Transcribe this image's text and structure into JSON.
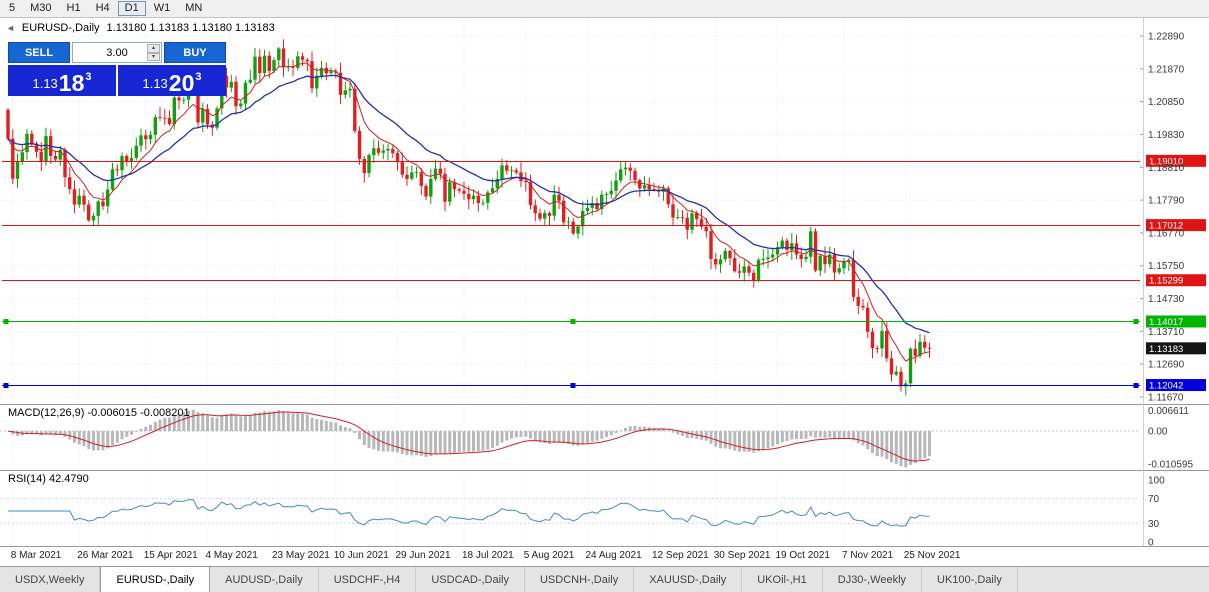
{
  "toolbar": {
    "timeframes": [
      "5",
      "M30",
      "H1",
      "H4",
      "D1",
      "W1",
      "MN"
    ],
    "active_timeframe": "D1"
  },
  "chart_header": {
    "symbol": "EURUSD-,Daily",
    "ohlc_text": "1.13180 1.13183 1.13180 1.13183"
  },
  "icons": {
    "collapse_left": "◄",
    "spin_up": "▴",
    "spin_down": "▾"
  },
  "trade_panel": {
    "sell_label": "SELL",
    "buy_label": "BUY",
    "volume": "3.00",
    "sell_price": {
      "prefix": "1.13",
      "big": "18",
      "sup": "3"
    },
    "buy_price": {
      "prefix": "1.13",
      "big": "20",
      "sup": "3"
    }
  },
  "chart_data": {
    "type": "candlestick",
    "symbol": "EURUSD-",
    "timeframe": "Daily",
    "current_bar": {
      "open": "1.13180",
      "high": "1.13183",
      "low": "1.13180",
      "close": "1.13183"
    },
    "y_axis_ticks": [
      "1.22890",
      "1.21870",
      "1.20850",
      "1.19830",
      "1.18810",
      "1.17790",
      "1.16770",
      "1.15750",
      "1.14730",
      "1.13710",
      "1.12690",
      "1.11670"
    ],
    "x_axis_labels": [
      {
        "label": "8 Mar 2021",
        "bar": 1
      },
      {
        "label": "26 Mar 2021",
        "bar": 15
      },
      {
        "label": "15 Apr 2021",
        "bar": 29
      },
      {
        "label": "4 May 2021",
        "bar": 42
      },
      {
        "label": "23 May 2021",
        "bar": 56
      },
      {
        "label": "10 Jun 2021",
        "bar": 69
      },
      {
        "label": "29 Jun 2021",
        "bar": 82
      },
      {
        "label": "18 Jul 2021",
        "bar": 96
      },
      {
        "label": "5 Aug 2021",
        "bar": 109
      },
      {
        "label": "24 Aug 2021",
        "bar": 122
      },
      {
        "label": "12 Sep 2021",
        "bar": 136
      },
      {
        "label": "30 Sep 2021",
        "bar": 149
      },
      {
        "label": "19 Oct 2021",
        "bar": 162
      },
      {
        "label": "7 Nov 2021",
        "bar": 176
      },
      {
        "label": "25 Nov 2021",
        "bar": 189
      }
    ],
    "closes": [
      1.197,
      1.1845,
      1.19,
      1.1928,
      1.1985,
      1.1955,
      1.1929,
      1.1899,
      1.1978,
      1.1916,
      1.1905,
      1.1935,
      1.185,
      1.1813,
      1.1765,
      1.1793,
      1.1765,
      1.1716,
      1.173,
      1.1775,
      1.176,
      1.1812,
      1.1875,
      1.1872,
      1.1916,
      1.1899,
      1.191,
      1.1948,
      1.198,
      1.1968,
      1.1982,
      1.2037,
      1.2035,
      1.2034,
      1.2015,
      1.2098,
      1.2089,
      1.2091,
      1.2125,
      1.2122,
      1.202,
      1.2062,
      1.2014,
      1.2004,
      1.2064,
      1.2165,
      1.2129,
      1.2147,
      1.2071,
      1.2079,
      1.2144,
      1.2153,
      1.2225,
      1.2174,
      1.2228,
      1.218,
      1.2214,
      1.225,
      1.2192,
      1.2195,
      1.219,
      1.2226,
      1.2215,
      1.2211,
      1.2126,
      1.2166,
      1.219,
      1.2173,
      1.2179,
      1.2175,
      1.2106,
      1.212,
      1.2125,
      1.1994,
      1.1907,
      1.1863,
      1.1919,
      1.194,
      1.1926,
      1.1933,
      1.1938,
      1.1925,
      1.1897,
      1.1858,
      1.1845,
      1.1865,
      1.1866,
      1.1823,
      1.179,
      1.1845,
      1.1877,
      1.1861,
      1.1774,
      1.1835,
      1.1813,
      1.1808,
      1.1799,
      1.1782,
      1.1793,
      1.177,
      1.1771,
      1.1803,
      1.1816,
      1.1845,
      1.1887,
      1.187,
      1.1872,
      1.1865,
      1.1838,
      1.1835,
      1.1763,
      1.1738,
      1.1721,
      1.1739,
      1.173,
      1.1796,
      1.1777,
      1.171,
      1.1712,
      1.1675,
      1.1697,
      1.1745,
      1.1755,
      1.177,
      1.1751,
      1.1796,
      1.1797,
      1.1808,
      1.184,
      1.1875,
      1.188,
      1.187,
      1.1841,
      1.1815,
      1.1825,
      1.1813,
      1.181,
      1.1805,
      1.1816,
      1.1766,
      1.1725,
      1.1726,
      1.1724,
      1.1687,
      1.1738,
      1.172,
      1.1696,
      1.1682,
      1.1596,
      1.1579,
      1.1595,
      1.1621,
      1.1598,
      1.1558,
      1.1553,
      1.1573,
      1.1553,
      1.153,
      1.1593,
      1.1596,
      1.1601,
      1.161,
      1.1633,
      1.1653,
      1.1624,
      1.1645,
      1.161,
      1.1596,
      1.1603,
      1.1682,
      1.156,
      1.1606,
      1.158,
      1.161,
      1.1554,
      1.1567,
      1.1588,
      1.1593,
      1.1478,
      1.145,
      1.1445,
      1.137,
      1.1319,
      1.1318,
      1.1372,
      1.1287,
      1.1237,
      1.1246,
      1.12,
      1.1209,
      1.1317,
      1.1295,
      1.1339,
      1.132,
      1.13183
    ],
    "levels": [
      {
        "price": 1.1901,
        "label": "1.19010",
        "color": "#e01414",
        "selected": false
      },
      {
        "price": 1.17012,
        "label": "1.17012",
        "color": "#e01414",
        "selected": false
      },
      {
        "price": 1.15299,
        "label": "1.15299",
        "color": "#e01414",
        "selected": false
      },
      {
        "price": 1.14017,
        "label": "1.14017",
        "color": "#00b400",
        "selected": true
      },
      {
        "price": 1.12042,
        "label": "1.12042",
        "color": "#0000dc",
        "selected": true
      }
    ],
    "current_price": {
      "price": 1.13183,
      "label": "1.13183",
      "color": "#151515"
    },
    "moving_averages": [
      {
        "period": 8,
        "color": "#cc2222"
      },
      {
        "period": 21,
        "color": "#2233aa"
      }
    ]
  },
  "macd": {
    "title": "MACD(12,26,9) -0.006015 -0.008201",
    "fast": 12,
    "slow": 26,
    "signal": 9,
    "axis_labels": [
      {
        "value": 0.006611,
        "label": "0.006611"
      },
      {
        "value": 0,
        "label": "0.00"
      },
      {
        "value": -0.010595,
        "label": "-0.010595"
      }
    ]
  },
  "rsi": {
    "title": "RSI(14) 42.4790",
    "period": 14,
    "axis_labels": [
      {
        "value": 100,
        "label": "100"
      },
      {
        "value": 70,
        "label": "70"
      },
      {
        "value": 30,
        "label": "30"
      },
      {
        "value": 0,
        "label": "0"
      }
    ]
  },
  "tabs": [
    {
      "label": "USDX,Weekly",
      "active": false
    },
    {
      "label": "EURUSD-,Daily",
      "active": true
    },
    {
      "label": "AUDUSD-,Daily",
      "active": false
    },
    {
      "label": "USDCHF-,H4",
      "active": false
    },
    {
      "label": "USDCAD-,Daily",
      "active": false
    },
    {
      "label": "USDCNH-,Daily",
      "active": false
    },
    {
      "label": "XAUUSD-,Daily",
      "active": false
    },
    {
      "label": "UKOil-,H1",
      "active": false
    },
    {
      "label": "DJ30-,Weekly",
      "active": false
    },
    {
      "label": "UK100-,Daily",
      "active": false
    }
  ],
  "colors": {
    "bull": "#12a012",
    "bear": "#e02020",
    "ma_fast": "#cc2222",
    "ma_slow": "#2233aa",
    "macd_hist": "#b8b8b8",
    "macd_signal": "#cc2222",
    "rsi_line": "#4a86c8",
    "grid": "#ececec",
    "axis_text": "#3a3a3a",
    "button_blue": "#1565d2",
    "price_display_blue": "#1526d2"
  }
}
